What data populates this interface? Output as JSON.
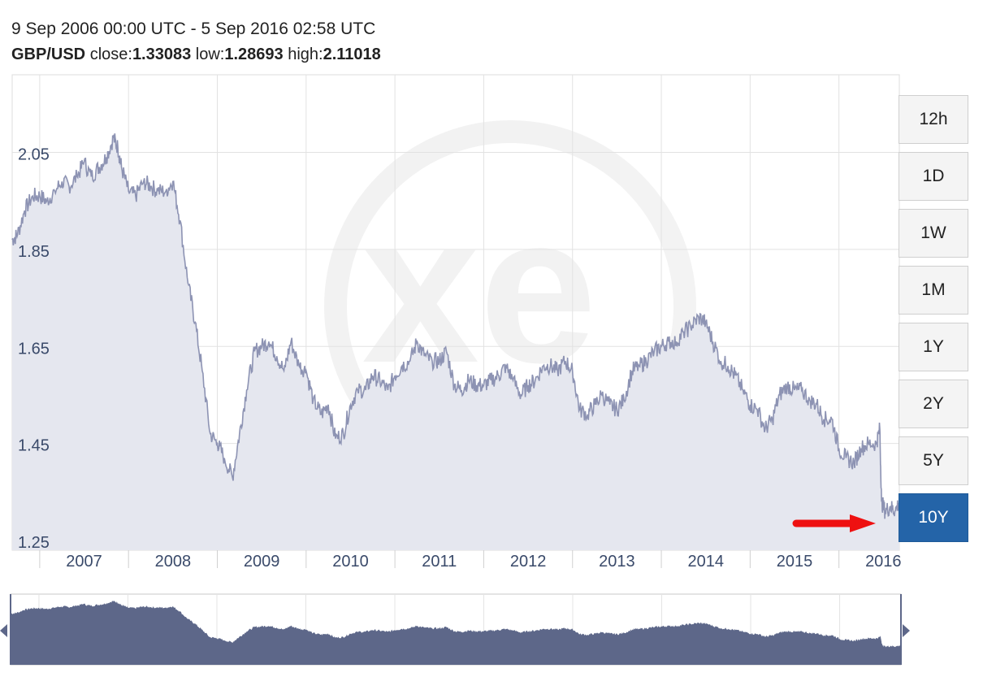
{
  "header": {
    "date_range": "9 Sep 2006 00:00 UTC - 5 Sep 2016 02:58 UTC",
    "pair": "GBP/USD",
    "close_label": "close:",
    "close": "1.33083",
    "low_label": "low:",
    "low": "1.28693",
    "high_label": "high:",
    "high": "2.11018"
  },
  "range_buttons": [
    {
      "label": "12h",
      "active": false
    },
    {
      "label": "1D",
      "active": false
    },
    {
      "label": "1W",
      "active": false
    },
    {
      "label": "1M",
      "active": false
    },
    {
      "label": "1Y",
      "active": false
    },
    {
      "label": "2Y",
      "active": false
    },
    {
      "label": "5Y",
      "active": false
    },
    {
      "label": "10Y",
      "active": true
    }
  ],
  "colors": {
    "line": "#8d93b3",
    "area": "#e5e7ef",
    "navigator_fill": "#5d6789",
    "active_button": "#2464a8",
    "arrow": "#ee1111"
  },
  "chart_data": {
    "type": "area",
    "title": "",
    "xlabel": "",
    "ylabel": "",
    "xlim": [
      2006.69,
      2016.68
    ],
    "ylim": [
      1.23,
      2.21
    ],
    "y_ticks": [
      1.25,
      1.45,
      1.65,
      1.85,
      2.05
    ],
    "x_ticks": [
      "2007",
      "2008",
      "2009",
      "2010",
      "2011",
      "2012",
      "2013",
      "2014",
      "2015",
      "2016"
    ],
    "grid": true,
    "series": [
      {
        "points": [
          [
            2006.69,
            1.87
          ],
          [
            2006.75,
            1.88
          ],
          [
            2006.83,
            1.93
          ],
          [
            2006.92,
            1.96
          ],
          [
            2007.0,
            1.96
          ],
          [
            2007.08,
            1.95
          ],
          [
            2007.17,
            1.97
          ],
          [
            2007.25,
            1.99
          ],
          [
            2007.33,
            1.98
          ],
          [
            2007.42,
            2.0
          ],
          [
            2007.5,
            2.03
          ],
          [
            2007.58,
            2.0
          ],
          [
            2007.67,
            2.02
          ],
          [
            2007.75,
            2.04
          ],
          [
            2007.83,
            2.08
          ],
          [
            2007.88,
            2.06
          ],
          [
            2007.92,
            2.02
          ],
          [
            2008.0,
            1.97
          ],
          [
            2008.08,
            1.96
          ],
          [
            2008.17,
            1.99
          ],
          [
            2008.25,
            1.98
          ],
          [
            2008.33,
            1.97
          ],
          [
            2008.42,
            1.97
          ],
          [
            2008.5,
            1.99
          ],
          [
            2008.58,
            1.91
          ],
          [
            2008.67,
            1.78
          ],
          [
            2008.75,
            1.7
          ],
          [
            2008.83,
            1.6
          ],
          [
            2008.92,
            1.47
          ],
          [
            2009.0,
            1.45
          ],
          [
            2009.08,
            1.42
          ],
          [
            2009.17,
            1.38
          ],
          [
            2009.25,
            1.47
          ],
          [
            2009.33,
            1.56
          ],
          [
            2009.42,
            1.64
          ],
          [
            2009.5,
            1.65
          ],
          [
            2009.58,
            1.66
          ],
          [
            2009.67,
            1.63
          ],
          [
            2009.75,
            1.6
          ],
          [
            2009.83,
            1.66
          ],
          [
            2009.92,
            1.61
          ],
          [
            2010.0,
            1.6
          ],
          [
            2010.08,
            1.54
          ],
          [
            2010.17,
            1.51
          ],
          [
            2010.25,
            1.53
          ],
          [
            2010.33,
            1.46
          ],
          [
            2010.42,
            1.47
          ],
          [
            2010.5,
            1.53
          ],
          [
            2010.58,
            1.56
          ],
          [
            2010.67,
            1.56
          ],
          [
            2010.75,
            1.59
          ],
          [
            2010.83,
            1.58
          ],
          [
            2010.92,
            1.56
          ],
          [
            2011.0,
            1.59
          ],
          [
            2011.08,
            1.61
          ],
          [
            2011.17,
            1.62
          ],
          [
            2011.25,
            1.66
          ],
          [
            2011.33,
            1.63
          ],
          [
            2011.42,
            1.62
          ],
          [
            2011.5,
            1.62
          ],
          [
            2011.58,
            1.64
          ],
          [
            2011.67,
            1.57
          ],
          [
            2011.75,
            1.56
          ],
          [
            2011.83,
            1.58
          ],
          [
            2011.92,
            1.57
          ],
          [
            2012.0,
            1.57
          ],
          [
            2012.08,
            1.58
          ],
          [
            2012.17,
            1.59
          ],
          [
            2012.25,
            1.61
          ],
          [
            2012.33,
            1.58
          ],
          [
            2012.42,
            1.55
          ],
          [
            2012.5,
            1.57
          ],
          [
            2012.58,
            1.58
          ],
          [
            2012.67,
            1.61
          ],
          [
            2012.75,
            1.61
          ],
          [
            2012.83,
            1.6
          ],
          [
            2012.92,
            1.62
          ],
          [
            2013.0,
            1.6
          ],
          [
            2013.08,
            1.52
          ],
          [
            2013.17,
            1.51
          ],
          [
            2013.25,
            1.53
          ],
          [
            2013.33,
            1.55
          ],
          [
            2013.42,
            1.53
          ],
          [
            2013.5,
            1.52
          ],
          [
            2013.58,
            1.54
          ],
          [
            2013.67,
            1.6
          ],
          [
            2013.75,
            1.61
          ],
          [
            2013.83,
            1.62
          ],
          [
            2013.92,
            1.64
          ],
          [
            2014.0,
            1.65
          ],
          [
            2014.08,
            1.66
          ],
          [
            2014.17,
            1.66
          ],
          [
            2014.25,
            1.68
          ],
          [
            2014.33,
            1.69
          ],
          [
            2014.42,
            1.71
          ],
          [
            2014.5,
            1.7
          ],
          [
            2014.58,
            1.66
          ],
          [
            2014.67,
            1.62
          ],
          [
            2014.75,
            1.61
          ],
          [
            2014.83,
            1.59
          ],
          [
            2014.92,
            1.56
          ],
          [
            2015.0,
            1.53
          ],
          [
            2015.08,
            1.52
          ],
          [
            2015.17,
            1.48
          ],
          [
            2015.25,
            1.5
          ],
          [
            2015.33,
            1.55
          ],
          [
            2015.42,
            1.57
          ],
          [
            2015.5,
            1.56
          ],
          [
            2015.58,
            1.56
          ],
          [
            2015.67,
            1.54
          ],
          [
            2015.75,
            1.53
          ],
          [
            2015.83,
            1.5
          ],
          [
            2015.92,
            1.5
          ],
          [
            2016.0,
            1.44
          ],
          [
            2016.08,
            1.42
          ],
          [
            2016.17,
            1.41
          ],
          [
            2016.25,
            1.44
          ],
          [
            2016.33,
            1.45
          ],
          [
            2016.42,
            1.45
          ],
          [
            2016.46,
            1.48
          ],
          [
            2016.48,
            1.33
          ],
          [
            2016.52,
            1.31
          ],
          [
            2016.58,
            1.32
          ],
          [
            2016.63,
            1.31
          ],
          [
            2016.68,
            1.33
          ]
        ]
      }
    ]
  }
}
